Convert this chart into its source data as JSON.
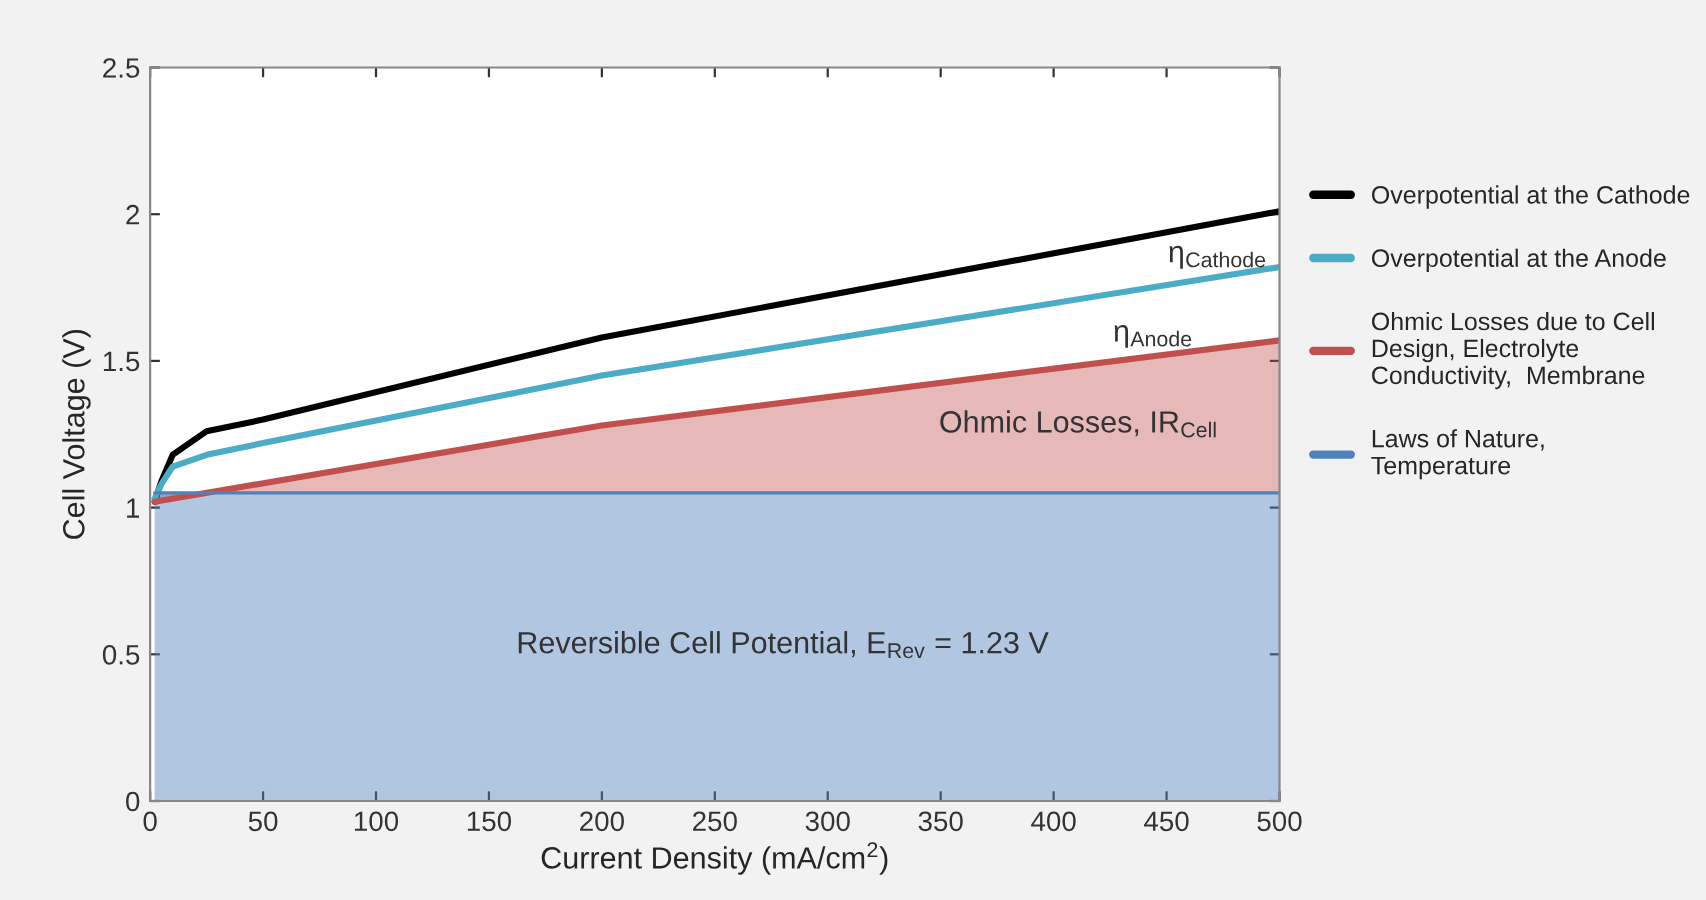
{
  "chart_data": {
    "type": "line",
    "xlabel": "Current Density (mA/cm$^{2}$)",
    "ylabel": "Cell Voltage (V)",
    "xlim": [
      0,
      500
    ],
    "ylim": [
      0,
      2.5
    ],
    "xticks": [
      0,
      50,
      100,
      150,
      200,
      250,
      300,
      350,
      400,
      450,
      500
    ],
    "yticks": [
      0,
      0.5,
      1,
      1.5,
      2,
      2.5
    ],
    "grid": false,
    "legend": "right",
    "marker": "none",
    "line_style": "solid",
    "series": [
      {
        "name": "Overpotential at the Cathode",
        "color": "#000000",
        "x": [
          2,
          5,
          10,
          25,
          50,
          200,
          500
        ],
        "values": [
          1.02,
          1.09,
          1.18,
          1.26,
          1.3,
          1.58,
          2.01
        ]
      },
      {
        "name": "Overpotential at the Anode",
        "color": "#4bacc6",
        "x": [
          2,
          5,
          10,
          25,
          50,
          200,
          500
        ],
        "values": [
          1.03,
          1.08,
          1.14,
          1.18,
          1.22,
          1.45,
          1.82
        ]
      },
      {
        "name": "Ohmic Losses due to Cell\nDesign, Electrolyte\nConductivity,  Membrane",
        "color": "#c0504d",
        "x": [
          2,
          200,
          500
        ],
        "values": [
          1.02,
          1.28,
          1.57
        ],
        "lower": [
          1.05,
          1.05,
          1.05
        ],
        "upper": [
          1.02,
          1.28,
          1.57
        ]
      },
      {
        "name": "Laws of Nature,\nTemperature",
        "color": "#4f81bd",
        "type": "area",
        "x": [
          2,
          500
        ],
        "values": [
          1.05,
          1.05
        ]
      }
    ],
    "annotations": [
      "η$_{Cathode}$",
      "η$_{Anode}$",
      "Ohmic Losses, IR$_{Cell}$",
      "Reversible Cell Potential, E$_{Rev}$ = 1.23 V"
    ]
  }
}
